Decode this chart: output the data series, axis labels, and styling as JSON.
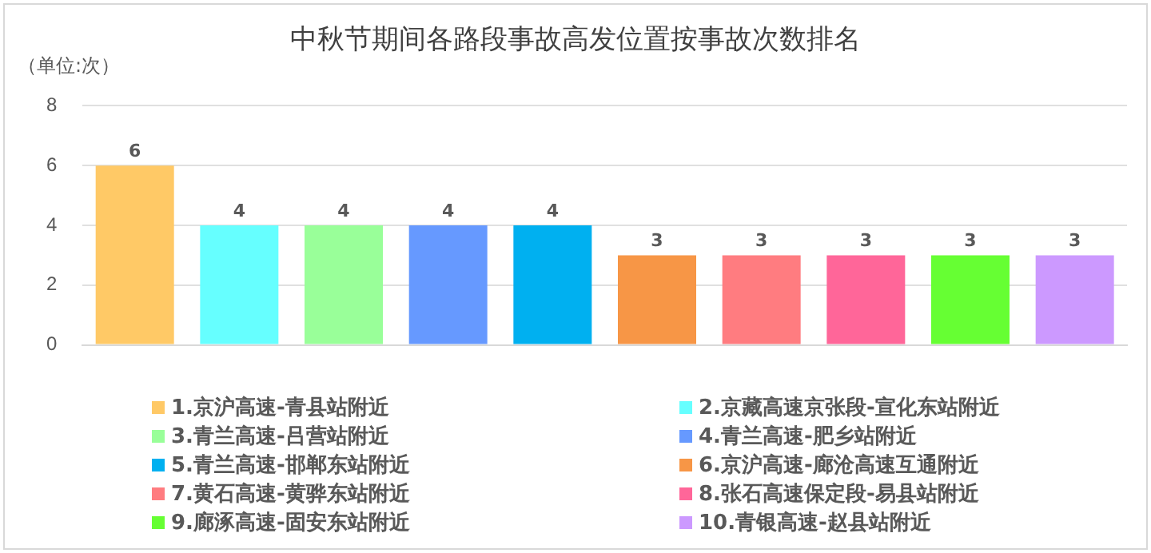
{
  "chart_data": {
    "type": "bar",
    "title": "中秋节期间各路段事故高发位置按事故次数排名",
    "ylabel": "（单位:次）",
    "categories": [
      null,
      null,
      null,
      null,
      null,
      null,
      null,
      null,
      null,
      null
    ],
    "series": [
      {
        "name": "1.京沪高速-青县站附近",
        "color": "#ffc966",
        "values": [
          6,
          null,
          null,
          null,
          null,
          null,
          null,
          null,
          null,
          null
        ]
      },
      {
        "name": "2.京藏高速京张段-宣化东站附近",
        "color": "#66ffff",
        "values": [
          null,
          4,
          null,
          null,
          null,
          null,
          null,
          null,
          null,
          null
        ]
      },
      {
        "name": "3.青兰高速-吕营站附近",
        "color": "#99ff99",
        "values": [
          null,
          null,
          4,
          null,
          null,
          null,
          null,
          null,
          null,
          null
        ]
      },
      {
        "name": "4.青兰高速-肥乡站附近",
        "color": "#6699ff",
        "values": [
          null,
          null,
          null,
          4,
          null,
          null,
          null,
          null,
          null,
          null
        ]
      },
      {
        "name": "5.青兰高速-邯郸东站附近",
        "color": "#00b0f0",
        "values": [
          null,
          null,
          null,
          null,
          4,
          null,
          null,
          null,
          null,
          null
        ]
      },
      {
        "name": "6.京沪高速-廊沧高速互通附近",
        "color": "#f79646",
        "values": [
          null,
          null,
          null,
          null,
          null,
          3,
          null,
          null,
          null,
          null
        ]
      },
      {
        "name": "7.黄石高速-黄骅东站附近",
        "color": "#ff7c80",
        "values": [
          null,
          null,
          null,
          null,
          null,
          null,
          3,
          null,
          null,
          null
        ]
      },
      {
        "name": "8.张石高速保定段-易县站附近",
        "color": "#ff6699",
        "values": [
          null,
          null,
          null,
          null,
          null,
          null,
          null,
          3,
          null,
          null
        ]
      },
      {
        "name": "9.廊涿高速-固安东站附近",
        "color": "#66ff33",
        "values": [
          null,
          null,
          null,
          null,
          null,
          null,
          null,
          null,
          3,
          null
        ]
      },
      {
        "name": "10.青银高速-赵县站附近",
        "color": "#cc99ff",
        "values": [
          null,
          null,
          null,
          null,
          null,
          null,
          null,
          null,
          null,
          3
        ]
      }
    ],
    "ylim": [
      0,
      8
    ],
    "yticks": [
      0,
      2,
      4,
      6,
      8
    ],
    "grid": "y",
    "legend": "bottom",
    "data_labels": true
  }
}
